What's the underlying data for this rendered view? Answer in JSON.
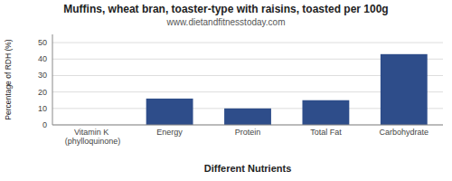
{
  "chart_data": {
    "type": "bar",
    "title": "Muffins, wheat bran, toaster-type with raisins, toasted per 100g",
    "subtitle": "www.dietandfitnesstoday.com",
    "categories": [
      "Vitamin K (phylloquinone)",
      "Energy",
      "Protein",
      "Total Fat",
      "Carbohydrate"
    ],
    "values": [
      0,
      16,
      10,
      15,
      43
    ],
    "color": "#2e4d8a",
    "xlabel": "Different Nutrients",
    "ylabel": "Percentage of RDH (%)",
    "ylim": [
      0,
      55
    ],
    "yticks": [
      0,
      10,
      20,
      30,
      40,
      50
    ],
    "grid": true
  }
}
